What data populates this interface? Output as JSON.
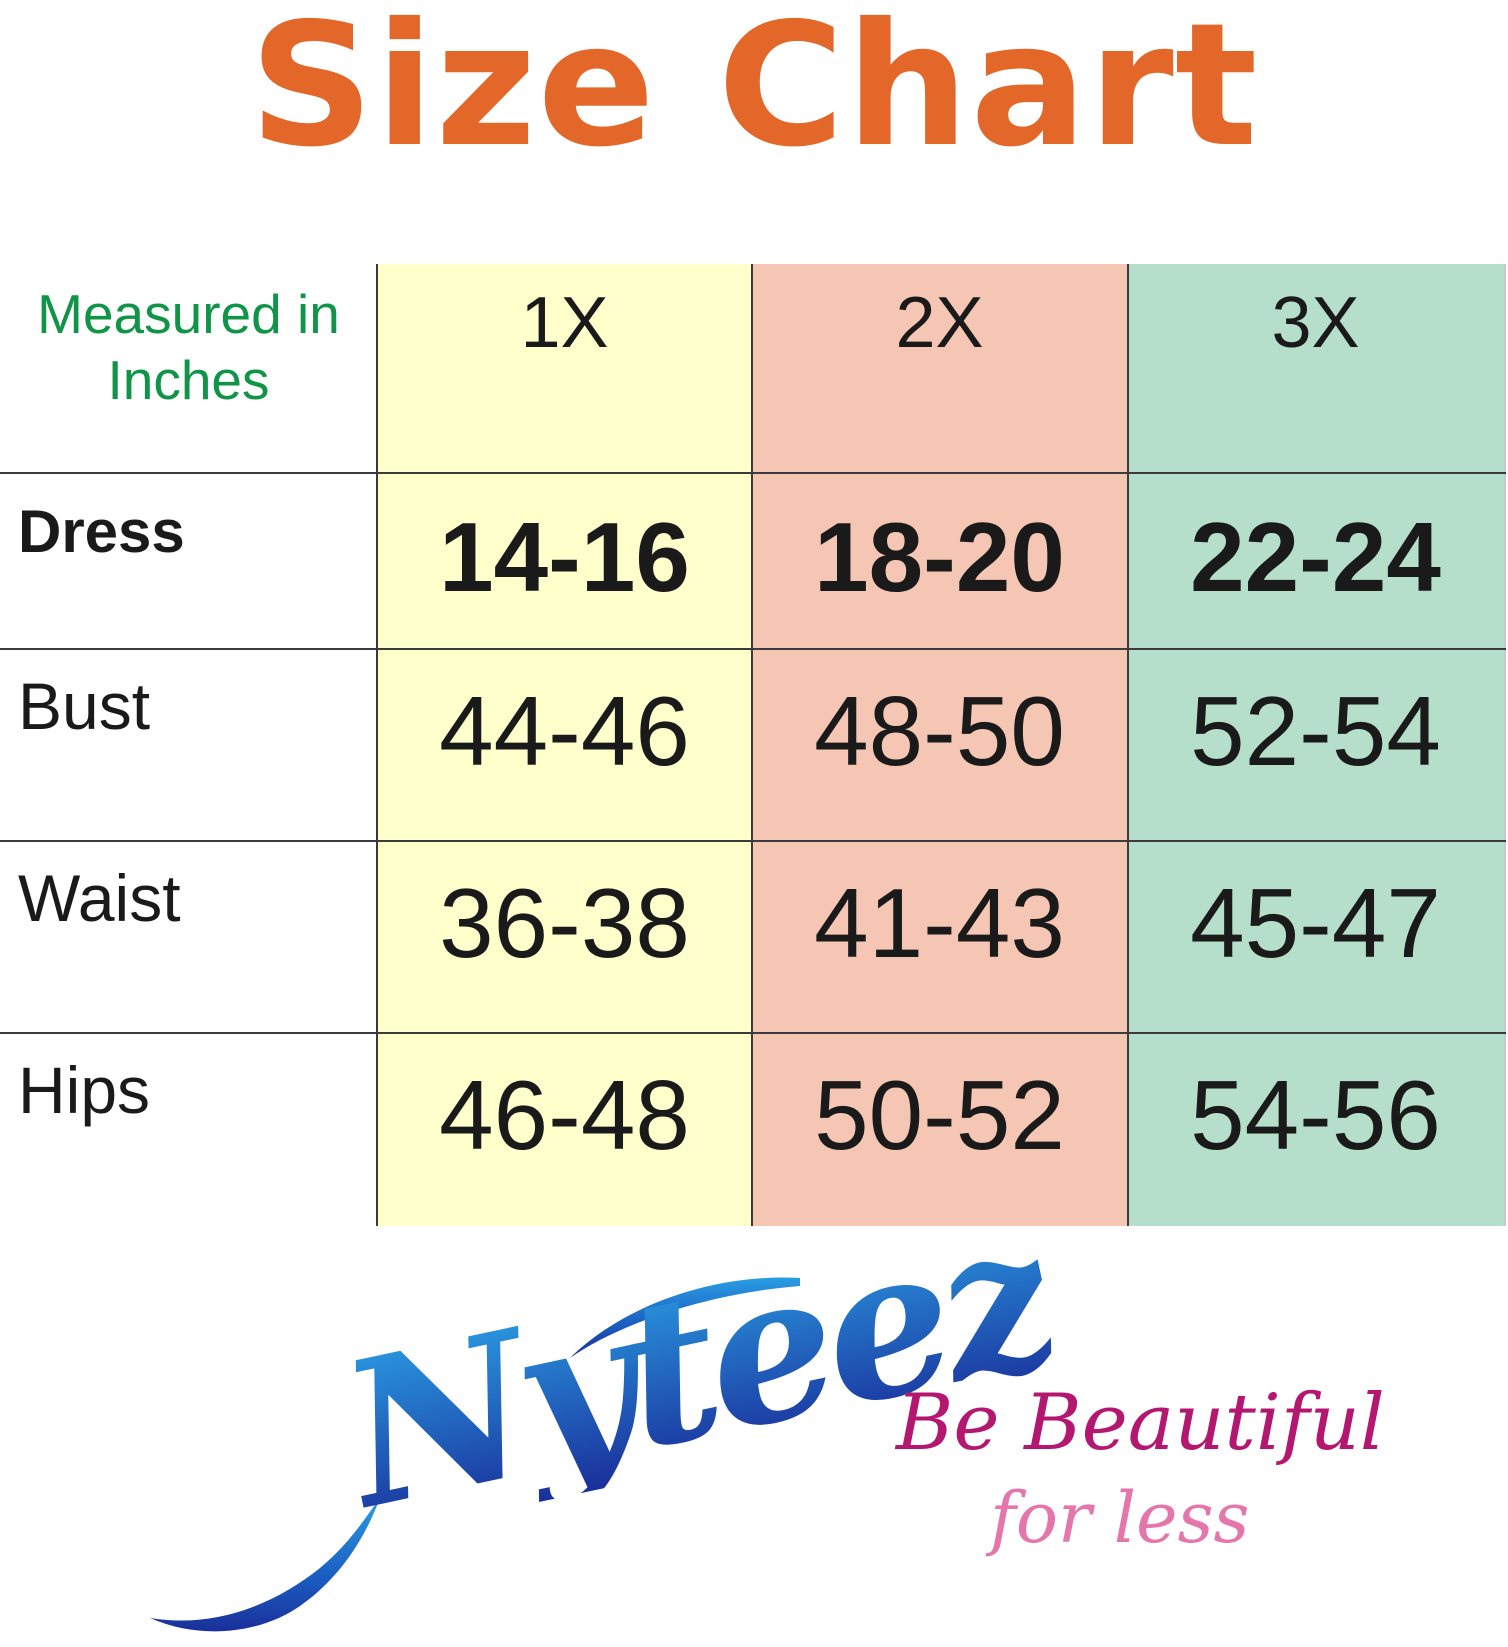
{
  "title": "Size Chart",
  "table": {
    "header_label": "Measured in Inches",
    "sizes": [
      "1X",
      "2X",
      "3X"
    ],
    "rows": [
      {
        "label": "Dress",
        "values": [
          "14-16",
          "18-20",
          "22-24"
        ]
      },
      {
        "label": "Bust",
        "values": [
          "44-46",
          "48-50",
          "52-54"
        ]
      },
      {
        "label": "Waist",
        "values": [
          "36-38",
          "41-43",
          "45-47"
        ]
      },
      {
        "label": "Hips",
        "values": [
          "46-48",
          "50-52",
          "54-56"
        ]
      }
    ]
  },
  "brand": {
    "name": "Nyteez",
    "tagline_1": "Be Beautiful",
    "tagline_2": "for less"
  },
  "colors": {
    "title": "#e4672a",
    "header_label": "#109448",
    "col_1x": "#ffffcc",
    "col_2x": "#f5c6b3",
    "col_3x": "#b6dfcb",
    "logo_blue_light": "#2a9ee3",
    "logo_blue_dark": "#1a2f9b",
    "tagline_1": "#b4176f",
    "tagline_2": "#e576ac"
  }
}
